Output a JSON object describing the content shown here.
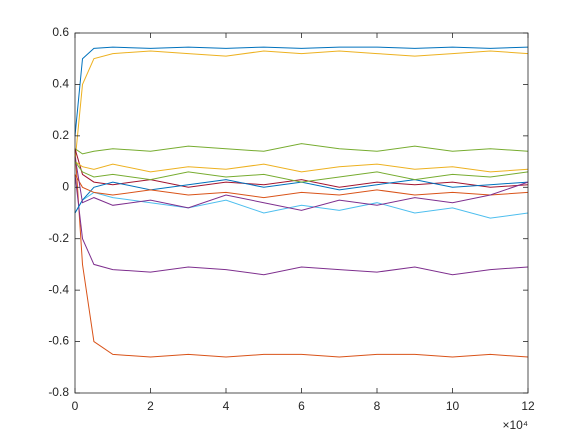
{
  "chart_data": {
    "type": "line",
    "x": [
      0,
      0.2,
      0.5,
      1,
      2,
      3,
      4,
      5,
      6,
      7,
      8,
      9,
      10,
      11,
      12
    ],
    "x_exponent_label": "×10⁴",
    "xlim": [
      0,
      12
    ],
    "xticks": [
      0,
      2,
      4,
      6,
      8,
      10,
      12
    ],
    "ylim": [
      -0.8,
      0.6
    ],
    "yticks": [
      -0.8,
      -0.6,
      -0.4,
      -0.2,
      0,
      0.2,
      0.4,
      0.6
    ],
    "grid": false,
    "series": [
      {
        "color": "#0072BD",
        "values": [
          0.2,
          0.5,
          0.54,
          0.545,
          0.54,
          0.545,
          0.54,
          0.545,
          0.54,
          0.545,
          0.545,
          0.54,
          0.545,
          0.54,
          0.545
        ]
      },
      {
        "color": "#D95319",
        "values": [
          0.15,
          -0.3,
          -0.6,
          -0.65,
          -0.66,
          -0.65,
          -0.66,
          -0.65,
          -0.65,
          -0.66,
          -0.65,
          -0.65,
          -0.66,
          -0.65,
          -0.66
        ]
      },
      {
        "color": "#EDB120",
        "values": [
          0.1,
          0.4,
          0.5,
          0.52,
          0.53,
          0.52,
          0.51,
          0.53,
          0.52,
          0.53,
          0.52,
          0.51,
          0.52,
          0.53,
          0.52
        ]
      },
      {
        "color": "#7E2F8E",
        "values": [
          0.05,
          -0.2,
          -0.3,
          -0.32,
          -0.33,
          -0.31,
          -0.32,
          -0.34,
          -0.31,
          -0.32,
          -0.33,
          -0.31,
          -0.34,
          -0.32,
          -0.31
        ]
      },
      {
        "color": "#77AC30",
        "values": [
          0.15,
          0.13,
          0.14,
          0.15,
          0.14,
          0.16,
          0.15,
          0.14,
          0.17,
          0.15,
          0.14,
          0.16,
          0.14,
          0.15,
          0.14
        ]
      },
      {
        "color": "#4DBEEE",
        "values": [
          -0.1,
          -0.05,
          -0.02,
          -0.04,
          -0.06,
          -0.08,
          -0.05,
          -0.1,
          -0.07,
          -0.09,
          -0.06,
          -0.1,
          -0.08,
          -0.12,
          -0.1
        ]
      },
      {
        "color": "#A2142F",
        "values": [
          0.15,
          0.05,
          0.02,
          0.01,
          0.03,
          0.0,
          0.02,
          0.01,
          0.03,
          0.0,
          0.02,
          0.01,
          0.02,
          0.0,
          0.01
        ]
      },
      {
        "color": "#0072BD",
        "values": [
          -0.1,
          -0.05,
          0.0,
          0.02,
          -0.01,
          0.01,
          0.03,
          0.0,
          0.02,
          -0.01,
          0.01,
          0.03,
          0.0,
          0.01,
          0.02
        ]
      },
      {
        "color": "#D95319",
        "values": [
          0.05,
          0.0,
          -0.02,
          -0.03,
          -0.01,
          -0.03,
          -0.02,
          -0.04,
          -0.02,
          -0.03,
          -0.01,
          -0.03,
          -0.02,
          -0.03,
          -0.02
        ]
      },
      {
        "color": "#EDB120",
        "values": [
          0.1,
          0.08,
          0.07,
          0.09,
          0.06,
          0.08,
          0.07,
          0.09,
          0.06,
          0.08,
          0.09,
          0.07,
          0.08,
          0.06,
          0.07
        ]
      },
      {
        "color": "#7E2F8E",
        "values": [
          0.12,
          -0.06,
          -0.04,
          -0.07,
          -0.05,
          -0.08,
          -0.03,
          -0.06,
          -0.09,
          -0.05,
          -0.07,
          -0.04,
          -0.06,
          -0.03,
          0.02
        ]
      },
      {
        "color": "#77AC30",
        "values": [
          0.1,
          0.06,
          0.04,
          0.05,
          0.03,
          0.06,
          0.04,
          0.05,
          0.02,
          0.04,
          0.06,
          0.03,
          0.05,
          0.04,
          0.06
        ]
      }
    ]
  }
}
